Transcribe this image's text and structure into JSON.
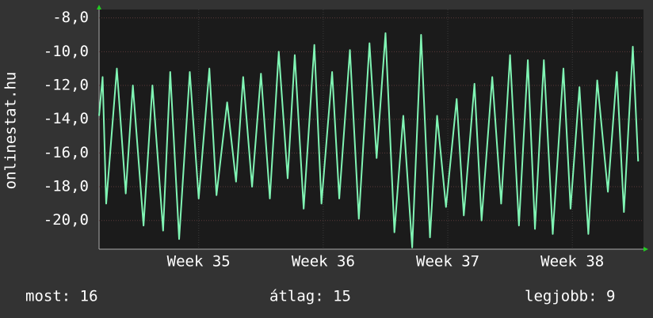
{
  "chart_data": {
    "type": "line",
    "y_label": "onlinestat.hu",
    "color": "#80f5b4",
    "grid": true,
    "xlim": [
      0,
      30.6
    ],
    "ylim": [
      -21.7,
      -7.5
    ],
    "yticks": [
      {
        "value": -8,
        "label": "-8,0"
      },
      {
        "value": -10,
        "label": "-10,0"
      },
      {
        "value": -12,
        "label": "-12,0"
      },
      {
        "value": -14,
        "label": "-14,0"
      },
      {
        "value": -16,
        "label": "-16,0"
      },
      {
        "value": -18,
        "label": "-18,0"
      },
      {
        "value": -20,
        "label": "-20,0"
      }
    ],
    "xticks": [
      {
        "value": 5.6,
        "label": "Week 35"
      },
      {
        "value": 12.6,
        "label": "Week 36"
      },
      {
        "value": 19.6,
        "label": "Week 37"
      },
      {
        "value": 26.6,
        "label": "Week 38"
      }
    ],
    "x": [
      0.0,
      0.2,
      0.4,
      1.0,
      1.5,
      1.9,
      2.5,
      3.0,
      3.6,
      4.0,
      4.5,
      5.1,
      5.6,
      6.2,
      6.6,
      7.2,
      7.7,
      8.1,
      8.6,
      9.1,
      9.6,
      10.1,
      10.6,
      11.0,
      11.5,
      12.1,
      12.5,
      13.1,
      13.5,
      14.1,
      14.6,
      15.2,
      15.6,
      16.1,
      16.6,
      17.1,
      17.6,
      18.1,
      18.6,
      19.0,
      19.5,
      20.1,
      20.5,
      21.1,
      21.5,
      22.1,
      22.6,
      23.1,
      23.6,
      24.1,
      24.5,
      25.0,
      25.5,
      26.1,
      26.5,
      27.0,
      27.5,
      28.0,
      28.6,
      29.1,
      29.5,
      30.0,
      30.3
    ],
    "values": [
      -13.8,
      -11.5,
      -19.0,
      -11.0,
      -18.4,
      -12.0,
      -20.3,
      -12.0,
      -20.6,
      -11.2,
      -21.1,
      -11.2,
      -18.7,
      -11.0,
      -18.5,
      -13.0,
      -17.7,
      -11.5,
      -18.0,
      -11.3,
      -18.7,
      -10.0,
      -17.5,
      -10.2,
      -19.3,
      -9.6,
      -19.0,
      -11.2,
      -18.7,
      -9.9,
      -19.9,
      -9.5,
      -16.3,
      -8.9,
      -20.7,
      -13.8,
      -21.6,
      -9.0,
      -21.0,
      -13.8,
      -19.2,
      -12.8,
      -19.7,
      -11.9,
      -20.0,
      -11.5,
      -19.0,
      -10.2,
      -20.3,
      -10.5,
      -20.5,
      -10.5,
      -20.8,
      -11.0,
      -19.3,
      -12.1,
      -20.8,
      -11.7,
      -18.3,
      -11.2,
      -19.5,
      -9.7,
      -16.5
    ],
    "footer": [
      "most: 16",
      "átlag: 15",
      "legjobb: 9"
    ]
  }
}
